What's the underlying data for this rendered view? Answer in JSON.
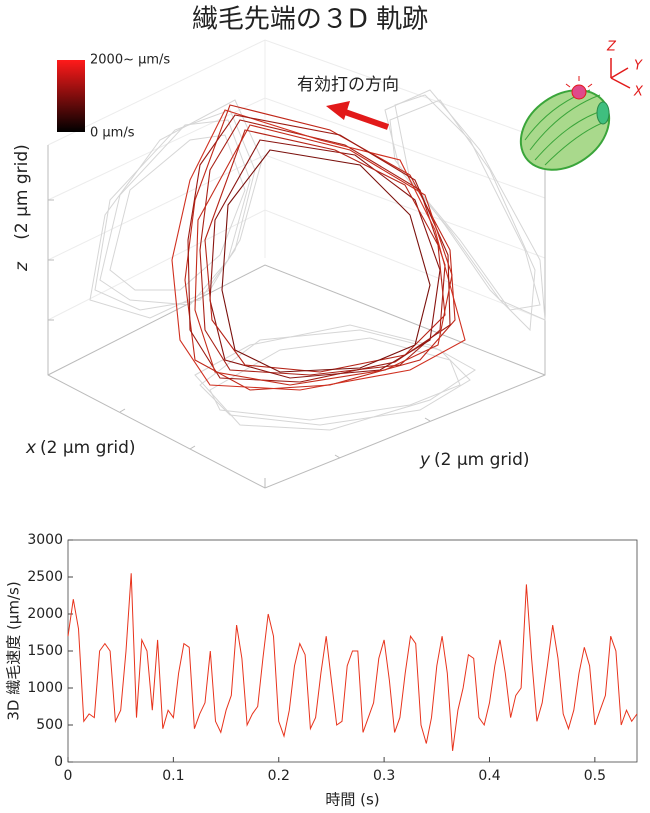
{
  "title": "繊毛先端の３D 軌跡",
  "trajectory_plot": {
    "colorbar_max_label": "2000~ μm/s",
    "colorbar_min_label": "0 μm/s",
    "annotation": "有効打の方向",
    "axis_icon": [
      "Z",
      "Y",
      "X"
    ],
    "x_axis": {
      "symbol": "x",
      "label": "(2 μm grid)"
    },
    "y_axis": {
      "symbol": "y",
      "label": "(2 μm grid)"
    },
    "z_axis": {
      "symbol": "z",
      "label": "(2 μm grid)"
    }
  },
  "chart_data": {
    "type": "line",
    "x_label": "時間 (s)",
    "y_label": "3D 繊毛速度 (μm/s)",
    "xlim": [
      0,
      0.54
    ],
    "xticks": [
      0,
      0.1,
      0.2,
      0.3,
      0.4,
      0.5
    ],
    "ylim": [
      0,
      3000
    ],
    "yticks": [
      0,
      500,
      1000,
      1500,
      2000,
      2500,
      3000
    ],
    "series": [
      {
        "name": "3D 繊毛速度",
        "color": "#e8331c",
        "x": [
          0,
          0.005,
          0.01,
          0.015,
          0.02,
          0.025,
          0.03,
          0.035,
          0.04,
          0.045,
          0.05,
          0.055,
          0.06,
          0.065,
          0.07,
          0.075,
          0.08,
          0.085,
          0.09,
          0.095,
          0.1,
          0.105,
          0.11,
          0.115,
          0.12,
          0.125,
          0.13,
          0.135,
          0.14,
          0.145,
          0.15,
          0.155,
          0.16,
          0.165,
          0.17,
          0.175,
          0.18,
          0.185,
          0.19,
          0.195,
          0.2,
          0.205,
          0.21,
          0.215,
          0.22,
          0.225,
          0.23,
          0.235,
          0.24,
          0.245,
          0.25,
          0.255,
          0.26,
          0.265,
          0.27,
          0.275,
          0.28,
          0.285,
          0.29,
          0.295,
          0.3,
          0.305,
          0.31,
          0.315,
          0.32,
          0.325,
          0.33,
          0.335,
          0.34,
          0.345,
          0.35,
          0.355,
          0.36,
          0.365,
          0.37,
          0.375,
          0.38,
          0.385,
          0.39,
          0.395,
          0.4,
          0.405,
          0.41,
          0.415,
          0.42,
          0.425,
          0.43,
          0.435,
          0.44,
          0.445,
          0.45,
          0.455,
          0.46,
          0.465,
          0.47,
          0.475,
          0.48,
          0.485,
          0.49,
          0.495,
          0.5,
          0.505,
          0.51,
          0.515,
          0.52,
          0.525,
          0.53,
          0.535,
          0.54
        ],
        "values": [
          1700,
          2200,
          1800,
          550,
          650,
          600,
          1500,
          1600,
          1500,
          550,
          700,
          1500,
          2550,
          600,
          1650,
          1500,
          700,
          1650,
          450,
          700,
          600,
          1200,
          1600,
          1550,
          450,
          650,
          800,
          1500,
          550,
          400,
          700,
          900,
          1850,
          1400,
          500,
          650,
          750,
          1400,
          2000,
          1700,
          550,
          350,
          700,
          1300,
          1600,
          1450,
          450,
          600,
          1200,
          1700,
          1100,
          500,
          550,
          1300,
          1500,
          1500,
          400,
          600,
          800,
          1400,
          1650,
          1100,
          400,
          600,
          1200,
          1700,
          1600,
          500,
          250,
          600,
          1300,
          1700,
          1200,
          150,
          700,
          1000,
          1450,
          1400,
          600,
          500,
          800,
          1300,
          1650,
          1200,
          600,
          900,
          1000,
          2400,
          1400,
          550,
          800,
          1300,
          1850,
          1400,
          650,
          450,
          700,
          1200,
          1550,
          1300,
          500,
          700,
          900,
          1700,
          1500,
          500,
          700,
          550,
          650
        ]
      }
    ]
  }
}
